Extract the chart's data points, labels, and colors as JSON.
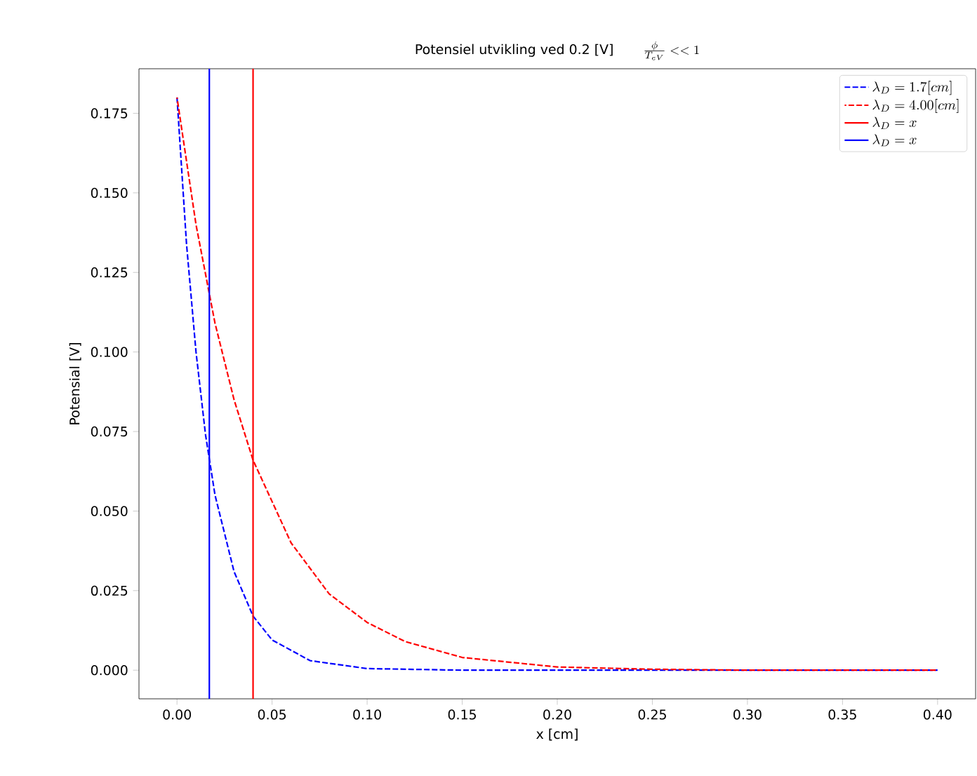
{
  "chart_data": {
    "type": "line",
    "title": "Potensiel utvikling ved 0.2 [V]",
    "subtitle": "\\frac{\\phi}{T_{eV}}<<1",
    "xlabel": "x [cm]",
    "ylabel": "Potensial [V]",
    "xlim": [
      -0.02,
      0.42
    ],
    "ylim": [
      -0.009,
      0.189
    ],
    "xticks": [
      {
        "value": 0,
        "label": "0.00"
      },
      {
        "value": 0.05,
        "label": "0.05"
      },
      {
        "value": 0.1,
        "label": "0.10"
      },
      {
        "value": 0.15,
        "label": "0.15"
      },
      {
        "value": 0.2,
        "label": "0.20"
      },
      {
        "value": 0.25,
        "label": "0.25"
      },
      {
        "value": 0.3,
        "label": "0.30"
      },
      {
        "value": 0.35,
        "label": "0.35"
      },
      {
        "value": 0.4,
        "label": "0.40"
      }
    ],
    "yticks": [
      {
        "value": 0,
        "label": "0.000"
      },
      {
        "value": 0.025,
        "label": "0.025"
      },
      {
        "value": 0.05,
        "label": "0.050"
      },
      {
        "value": 0.075,
        "label": "0.075"
      },
      {
        "value": 0.1,
        "label": "0.100"
      },
      {
        "value": 0.125,
        "label": "0.125"
      },
      {
        "value": 0.15,
        "label": "0.150"
      },
      {
        "value": 0.175,
        "label": "0.175"
      }
    ],
    "legend": "top right",
    "series": [
      {
        "name": "\\lambda_D = 1.7 [cm]",
        "color": "#0000ff",
        "line_style": "dashed",
        "x": [
          0,
          0.005,
          0.01,
          0.015,
          0.02,
          0.03,
          0.04,
          0.05,
          0.07,
          0.1,
          0.15,
          0.2,
          0.3,
          0.4
        ],
        "values": [
          0.18,
          0.134,
          0.1,
          0.074,
          0.055,
          0.031,
          0.017,
          0.0095,
          0.003,
          0.0005,
          0,
          0,
          0,
          0
        ]
      },
      {
        "name": "\\lambda_D = 4.00 [cm]",
        "color": "#ff0000",
        "line_style": "dashed",
        "x": [
          0,
          0.01,
          0.02,
          0.03,
          0.04,
          0.06,
          0.08,
          0.1,
          0.12,
          0.15,
          0.2,
          0.25,
          0.3,
          0.4
        ],
        "values": [
          0.18,
          0.14,
          0.109,
          0.085,
          0.066,
          0.04,
          0.024,
          0.015,
          0.009,
          0.004,
          0.001,
          0.0003,
          0,
          0
        ]
      },
      {
        "name": "\\lambda_D = x",
        "color": "#ff0000",
        "line_style": "solid",
        "x": [
          0.04,
          0.04
        ],
        "values": [
          -0.009,
          0.189
        ]
      },
      {
        "name": "\\lambda_D = x",
        "color": "#0000ff",
        "line_style": "solid",
        "x": [
          0.017,
          0.017
        ],
        "values": [
          -0.009,
          0.189
        ]
      }
    ]
  }
}
